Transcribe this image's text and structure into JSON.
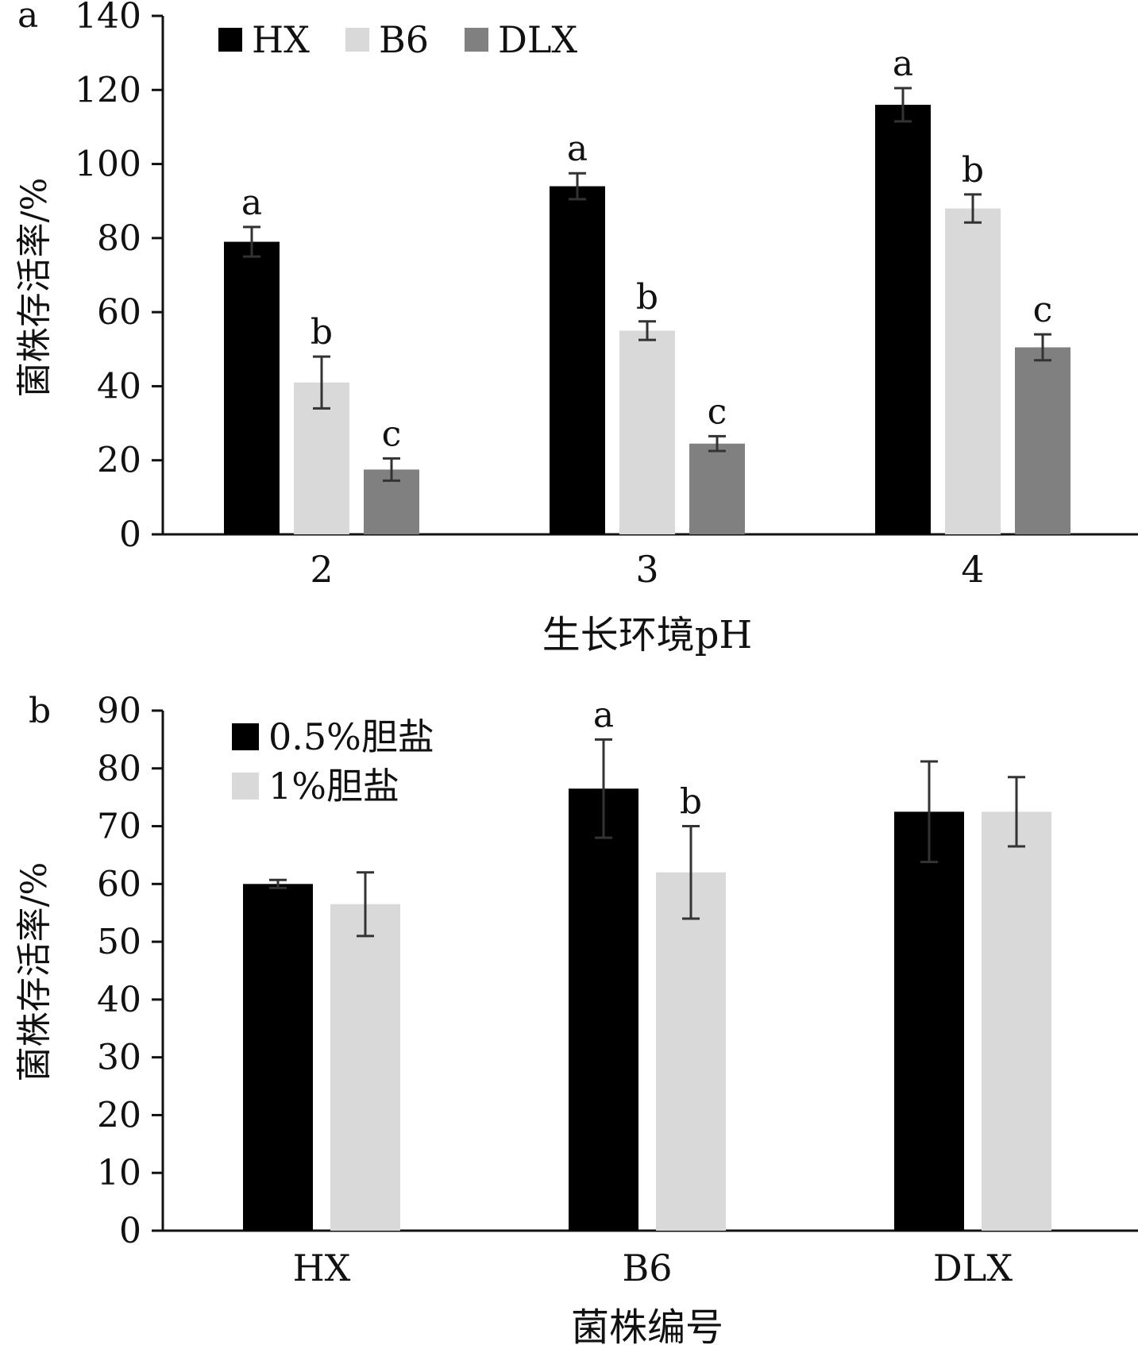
{
  "chart_data": [
    {
      "panel": "a",
      "type": "bar",
      "categories": [
        "2",
        "3",
        "4"
      ],
      "xlabel": "生长环境pH",
      "ylabel": "菌株存活率/%",
      "ylim": [
        0,
        140
      ],
      "yticks": [
        0,
        20,
        40,
        60,
        80,
        100,
        120,
        140
      ],
      "legend": "top-left",
      "series": [
        {
          "name": "HX",
          "color": "#000000",
          "values": [
            79,
            94,
            116
          ],
          "errors": [
            4,
            3.5,
            4.5
          ],
          "labels": [
            "a",
            "a",
            "a"
          ]
        },
        {
          "name": "B6",
          "color": "#d9d9d9",
          "values": [
            41,
            55,
            88
          ],
          "errors": [
            7,
            2.5,
            3.8
          ],
          "labels": [
            "b",
            "b",
            "b"
          ]
        },
        {
          "name": "DLX",
          "color": "#808080",
          "values": [
            17.5,
            24.5,
            50.5
          ],
          "errors": [
            3,
            2,
            3.5
          ],
          "labels": [
            "c",
            "c",
            "c"
          ]
        }
      ]
    },
    {
      "panel": "b",
      "type": "bar",
      "categories": [
        "HX",
        "B6",
        "DLX"
      ],
      "xlabel": "菌株编号",
      "ylabel": "菌株存活率/%",
      "ylim": [
        0,
        90
      ],
      "yticks": [
        0,
        10,
        20,
        30,
        40,
        50,
        60,
        70,
        80,
        90
      ],
      "legend": "top-left",
      "series": [
        {
          "name": "0.5%胆盐",
          "color": "#000000",
          "values": [
            60,
            76.5,
            72.5
          ],
          "errors": [
            0.7,
            8.5,
            8.7
          ],
          "labels": [
            "",
            "a",
            ""
          ]
        },
        {
          "name": "1%胆盐",
          "color": "#d9d9d9",
          "values": [
            56.5,
            62,
            72.5
          ],
          "errors": [
            5.5,
            8,
            6
          ],
          "labels": [
            "",
            "b",
            ""
          ]
        }
      ]
    }
  ]
}
